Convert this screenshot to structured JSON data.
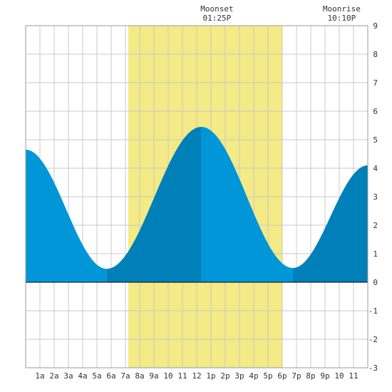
{
  "chart_data": {
    "type": "area",
    "title": "",
    "xlabel": "",
    "ylabel": "",
    "x_range_hours": [
      0,
      24
    ],
    "ylim": [
      -3,
      9
    ],
    "y_ticks": [
      "-3",
      "-2",
      "-1",
      "0",
      "1",
      "2",
      "3",
      "4",
      "5",
      "6",
      "7",
      "8",
      "9"
    ],
    "x_tick_hours": [
      1,
      2,
      3,
      4,
      5,
      6,
      7,
      8,
      9,
      10,
      11,
      12,
      13,
      14,
      15,
      16,
      17,
      18,
      19,
      20,
      21,
      22,
      23
    ],
    "x_tick_labels": [
      "1a",
      "2a",
      "3a",
      "4a",
      "5a",
      "6a",
      "7a",
      "8a",
      "9a",
      "10",
      "11",
      "12",
      "1p",
      "2p",
      "3p",
      "4p",
      "5p",
      "6p",
      "7p",
      "8p",
      "9p",
      "10",
      "11"
    ],
    "grid": true,
    "daylight_band_hours": [
      7.2,
      18.0
    ],
    "tide_extremes": [
      {
        "hour": 0.0,
        "height": 4.65,
        "kind": "start"
      },
      {
        "hour": 5.68,
        "height": 0.47,
        "kind": "low"
      },
      {
        "hour": 12.33,
        "height": 5.45,
        "kind": "high"
      },
      {
        "hour": 18.75,
        "height": 0.5,
        "kind": "low"
      },
      {
        "hour": 24.0,
        "height": 4.1,
        "kind": "end"
      }
    ],
    "shade_segments_hours": [
      {
        "from": 0,
        "to": 5.68,
        "color": "#0096d8"
      },
      {
        "from": 5.68,
        "to": 12.33,
        "color": "#0080b8"
      },
      {
        "from": 12.33,
        "to": 18.75,
        "color": "#0096d8"
      },
      {
        "from": 18.75,
        "to": 24,
        "color": "#0080b8"
      }
    ],
    "moon_events": [
      {
        "title": "Moonset",
        "time": "01:25P",
        "hour": 13.42
      },
      {
        "title": "Moonrise",
        "time": "10:10P",
        "hour": 22.17
      }
    ]
  },
  "colors": {
    "tide_light": "#0096d8",
    "tide_dark": "#0080b8",
    "daylight": "#f4ea86",
    "grid": "#c8c8c8",
    "border": "#9a9a9a",
    "zero_line": "#000000"
  }
}
